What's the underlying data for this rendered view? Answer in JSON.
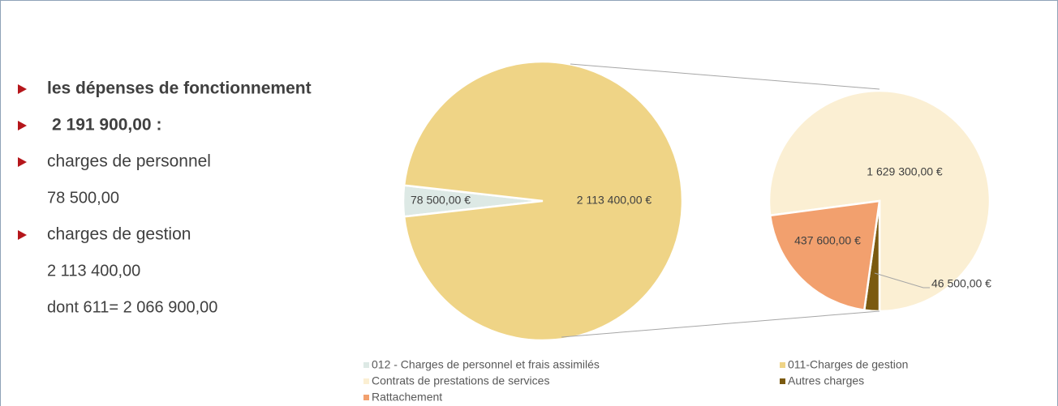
{
  "bullets": [
    {
      "text": "les dépenses de fonctionnement",
      "bold": true,
      "lines": []
    },
    {
      "text": "2 191 900,00 :",
      "bold": true,
      "lines": []
    },
    {
      "text": "charges de personnel",
      "bold": false,
      "lines": [
        "78 500,00"
      ]
    },
    {
      "text": "charges de gestion",
      "bold": false,
      "lines": [
        "2 113 400,00",
        "dont 611= 2 066 900,00"
      ]
    }
  ],
  "chart_data": {
    "type": "pie_of_pie",
    "main": {
      "categories": [
        "012 - Charges de personnel et frais assimilés",
        "011-Charges de gestion"
      ],
      "values": [
        78500,
        2113400
      ],
      "value_labels": [
        "78 500,00 €",
        "2 113 400,00 €"
      ],
      "colors": [
        "#dde9e5",
        "#efd486"
      ]
    },
    "secondary": {
      "categories": [
        "Contrats de prestations de services",
        "Autres  charges",
        "Rattachement"
      ],
      "values": [
        1629300,
        46500,
        437600
      ],
      "value_labels": [
        "1 629 300,00 €",
        "46 500,00 €",
        "437 600,00 €"
      ],
      "colors": [
        "#fbefd3",
        "#7b5a10",
        "#f2a06e"
      ]
    }
  }
}
